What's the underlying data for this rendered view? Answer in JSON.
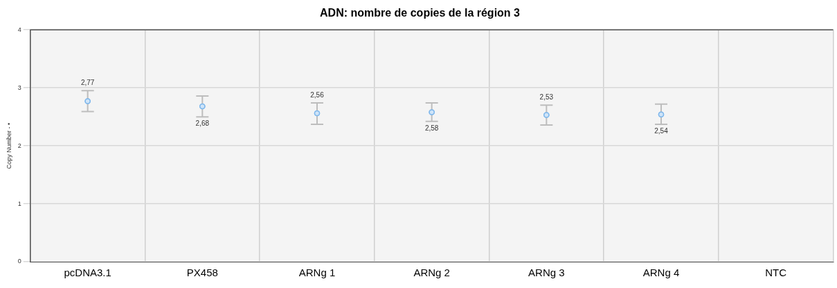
{
  "chart_data": {
    "type": "scatter",
    "title": "ADN: nombre de copies de la région 3",
    "ylabel": "Copy Number - •",
    "categories": [
      "pcDNA3.1",
      "PX458",
      "ARNg 1",
      "ARNg 2",
      "ARNg 3",
      "ARNg 4",
      "NTC"
    ],
    "series": [
      {
        "color": "#7fb8ec",
        "values": [
          2.77,
          2.68,
          2.56,
          2.58,
          2.53,
          2.54,
          null
        ],
        "errors": [
          [
            2.59,
            2.95
          ],
          [
            2.5,
            2.86
          ],
          [
            2.37,
            2.74
          ],
          [
            2.42,
            2.74
          ],
          [
            2.36,
            2.7
          ],
          [
            2.37,
            2.72
          ],
          null
        ],
        "value_labels": [
          "2,77",
          "2,68",
          "2,56",
          "2,58",
          "2,53",
          "2,54",
          null
        ]
      }
    ],
    "ylim": [
      0,
      4
    ],
    "yticks": [
      0,
      1,
      2,
      3,
      4
    ],
    "grid": true,
    "marker": "circle",
    "legend": false
  }
}
